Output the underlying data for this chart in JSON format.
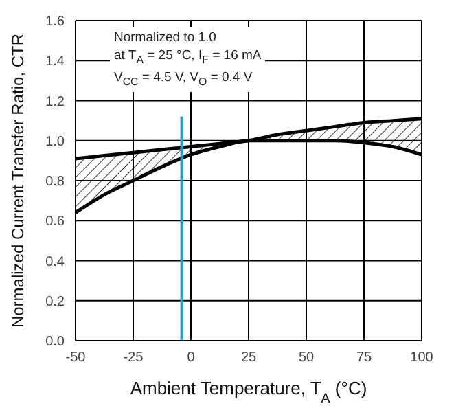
{
  "chart_data": {
    "type": "line",
    "xlabel": "Ambient Temperature, T$_{A}$ (°C)",
    "ylabel": "Normalized Current Transfer Ratio, CTR",
    "annotations": [
      "Normalized to 1.0",
      "at T$_{A}$ = 25 °C, I$_{F}$ = 16 mA",
      "V$_{CC}$ = 4.5 V, V$_{O}$ = 0.4 V"
    ],
    "x": [
      -50,
      -37.5,
      -25,
      -12.5,
      0,
      12.5,
      25,
      37.5,
      50,
      62.5,
      75,
      87.5,
      100
    ],
    "series": [
      {
        "color": "#000000",
        "values": [
          0.91,
          0.925,
          0.94,
          0.955,
          0.97,
          0.985,
          1.0,
          1.03,
          1.05,
          1.07,
          1.09,
          1.1,
          1.11
        ],
        "lower": [
          0.64,
          0.73,
          0.8,
          0.87,
          0.93,
          0.97,
          1.0,
          1.0,
          1.0,
          1.0,
          0.99,
          0.97,
          0.93
        ],
        "upper": [
          0.91,
          0.925,
          0.94,
          0.955,
          0.97,
          0.985,
          1.0,
          1.03,
          1.05,
          1.07,
          1.09,
          1.1,
          1.11
        ]
      },
      {
        "color": "#000000",
        "values": [
          0.64,
          0.73,
          0.8,
          0.87,
          0.93,
          0.97,
          1.0,
          1.0,
          1.0,
          1.0,
          0.99,
          0.97,
          0.93
        ]
      },
      {
        "color": "#1ba1d6",
        "x": [
          -4,
          -4
        ],
        "values": [
          0,
          1.12
        ]
      }
    ],
    "xlim": [
      -50,
      100
    ],
    "xticks": [
      -50,
      -25,
      0,
      25,
      50,
      75,
      100
    ],
    "ylim": [
      0,
      1.6
    ],
    "yticks": [
      {
        "value": 0,
        "label": "0.0"
      },
      {
        "value": 0.2,
        "label": "0.2"
      },
      {
        "value": 0.4,
        "label": "0.4"
      },
      {
        "value": 0.6,
        "label": "0.6"
      },
      {
        "value": 0.8,
        "label": "0.8"
      },
      {
        "value": 1,
        "label": "1.0"
      },
      {
        "value": 1.2,
        "label": "1.2"
      },
      {
        "value": 1.4,
        "label": "1.4"
      },
      {
        "value": 1.6,
        "label": "1.6"
      }
    ],
    "grid": true,
    "marker": "none",
    "line_style": "solid"
  }
}
